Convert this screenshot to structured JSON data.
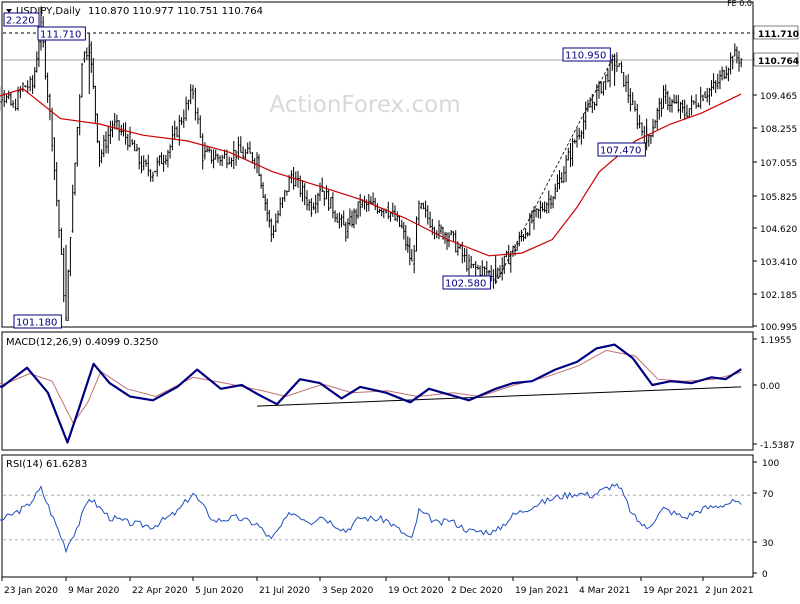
{
  "header": {
    "symbol": "USDJPY,Daily",
    "ohlc": "110.870 110.977 110.751 110.764",
    "corner_label": "FE 0.0"
  },
  "watermark": "ActionForex.com",
  "colors": {
    "price_bars": "#000000",
    "ema": "#cc0000",
    "macd_line": "#000080",
    "macd_signal": "#c07070",
    "rsi_line": "#1f4fbf",
    "trendline": "#000000",
    "label_border": "#000080",
    "current_price_line": "#a0a0a0",
    "grid_line": "#b0b0b0",
    "watermark_color": "#d8d8d8"
  },
  "chart_data": [
    {
      "type": "line",
      "panel": "price",
      "description_label": "USDJPY,Daily",
      "y_ticks": [
        "111.710",
        "110.764",
        "109.465",
        "108.255",
        "107.055",
        "105.825",
        "104.620",
        "103.410",
        "102.185",
        "100.995"
      ],
      "ylim": [
        100.995,
        111.71
      ],
      "x_tick_labels": [
        "23 Jan 2020",
        "9 Mar 2020",
        "22 Apr 2020",
        "5 Jun 2020",
        "21 Jul 2020",
        "3 Sep 2020",
        "19 Oct 2020",
        "2 Dec 2020",
        "19 Jan 2021",
        "4 Mar 2021",
        "19 Apr 2021",
        "2 Jun 2021"
      ],
      "annotations": [
        "2.220",
        "111.710",
        "101.180",
        "110.950",
        "107.470",
        "102.580"
      ],
      "current_price_label": "110.764",
      "resistance_label": "111.710",
      "series": [
        {
          "name": "",
          "dates": [
            "23 Jan 2020",
            "9 Mar 2020",
            "22 Apr 2020",
            "5 Jun 2020",
            "21 Jul 2020",
            "3 Sep 2020",
            "19 Oct 2020",
            "2 Dec 2020",
            "19 Jan 2021",
            "4 Mar 2021",
            "19 Apr 2021",
            "2 Jun 2021"
          ],
          "close_points": [
            [
              "2020-01-08",
              109.6
            ],
            [
              "2020-01-15",
              109.3
            ],
            [
              "2020-01-23",
              109.5
            ],
            [
              "2020-01-31",
              109.0
            ],
            [
              "2020-02-07",
              109.8
            ],
            [
              "2020-02-14",
              109.8
            ],
            [
              "2020-02-20",
              112.1
            ],
            [
              "2020-02-28",
              107.9
            ],
            [
              "2020-03-09",
              101.2
            ],
            [
              "2020-03-12",
              104.5
            ],
            [
              "2020-03-20",
              110.8
            ],
            [
              "2020-03-25",
              111.3
            ],
            [
              "2020-04-01",
              107.2
            ],
            [
              "2020-04-10",
              108.4
            ],
            [
              "2020-04-22",
              107.8
            ],
            [
              "2020-04-30",
              106.9
            ],
            [
              "2020-05-08",
              106.7
            ],
            [
              "2020-05-20",
              107.6
            ],
            [
              "2020-06-05",
              109.6
            ],
            [
              "2020-06-12",
              107.3
            ],
            [
              "2020-06-26",
              107.2
            ],
            [
              "2020-07-06",
              107.4
            ],
            [
              "2020-07-21",
              107.2
            ],
            [
              "2020-07-31",
              104.4
            ],
            [
              "2020-08-14",
              106.6
            ],
            [
              "2020-08-28",
              105.4
            ],
            [
              "2020-09-03",
              106.2
            ],
            [
              "2020-09-21",
              104.5
            ],
            [
              "2020-10-01",
              105.5
            ],
            [
              "2020-10-19",
              105.4
            ],
            [
              "2020-10-30",
              104.6
            ],
            [
              "2020-11-06",
              103.3
            ],
            [
              "2020-11-11",
              105.4
            ],
            [
              "2020-11-25",
              104.5
            ],
            [
              "2020-12-02",
              104.4
            ],
            [
              "2020-12-17",
              103.2
            ],
            [
              "2021-01-06",
              102.9
            ],
            [
              "2021-01-19",
              103.8
            ],
            [
              "2021-02-01",
              104.9
            ],
            [
              "2021-02-17",
              106.0
            ],
            [
              "2021-03-04",
              108.0
            ],
            [
              "2021-03-15",
              109.2
            ],
            [
              "2021-03-31",
              110.7
            ],
            [
              "2021-04-05",
              110.3
            ],
            [
              "2021-04-13",
              109.0
            ],
            [
              "2021-04-23",
              107.8
            ],
            [
              "2021-05-05",
              109.4
            ],
            [
              "2021-05-20",
              108.8
            ],
            [
              "2021-06-02",
              109.5
            ],
            [
              "2021-06-11",
              109.8
            ],
            [
              "2021-06-23",
              110.9
            ],
            [
              "2021-06-29",
              110.8
            ]
          ]
        },
        {
          "name": "",
          "points": [
            [
              "2020-01-08",
              109.2
            ],
            [
              "2020-02-07",
              109.7
            ],
            [
              "2020-03-05",
              108.6
            ],
            [
              "2020-04-01",
              108.4
            ],
            [
              "2020-05-01",
              108.0
            ],
            [
              "2020-06-01",
              107.8
            ],
            [
              "2020-07-01",
              107.4
            ],
            [
              "2020-08-01",
              106.7
            ],
            [
              "2020-09-01",
              106.2
            ],
            [
              "2020-10-01",
              105.7
            ],
            [
              "2020-11-01",
              105.0
            ],
            [
              "2020-12-01",
              104.2
            ],
            [
              "2021-01-01",
              103.6
            ],
            [
              "2021-01-25",
              103.7
            ],
            [
              "2021-02-15",
              104.2
            ],
            [
              "2021-03-04",
              105.4
            ],
            [
              "2021-03-20",
              106.7
            ],
            [
              "2021-04-15",
              107.8
            ],
            [
              "2021-05-10",
              108.4
            ],
            [
              "2021-06-01",
              108.8
            ],
            [
              "2021-06-29",
              109.5
            ]
          ]
        }
      ]
    },
    {
      "type": "line",
      "panel": "macd",
      "title": "MACD(12,26,9) 0.4099 0.3250",
      "y_ticks": [
        "1.1955",
        "0.00",
        "-1.5387"
      ],
      "ylim": [
        -1.5387,
        1.1955
      ],
      "series": [
        {
          "name": "",
          "points": [
            [
              "2020-01-08",
              0.1
            ],
            [
              "2020-01-23",
              -0.05
            ],
            [
              "2020-02-10",
              0.45
            ],
            [
              "2020-02-25",
              -0.2
            ],
            [
              "2020-03-10",
              -1.5
            ],
            [
              "2020-03-18",
              -0.6
            ],
            [
              "2020-03-28",
              0.55
            ],
            [
              "2020-04-08",
              0.05
            ],
            [
              "2020-04-22",
              -0.3
            ],
            [
              "2020-05-08",
              -0.4
            ],
            [
              "2020-05-25",
              -0.05
            ],
            [
              "2020-06-08",
              0.4
            ],
            [
              "2020-06-25",
              -0.1
            ],
            [
              "2020-07-10",
              0.0
            ],
            [
              "2020-07-22",
              -0.25
            ],
            [
              "2020-08-04",
              -0.5
            ],
            [
              "2020-08-20",
              0.15
            ],
            [
              "2020-09-03",
              0.05
            ],
            [
              "2020-09-18",
              -0.35
            ],
            [
              "2020-10-01",
              -0.05
            ],
            [
              "2020-10-19",
              -0.2
            ],
            [
              "2020-11-05",
              -0.45
            ],
            [
              "2020-11-18",
              -0.1
            ],
            [
              "2020-12-02",
              -0.25
            ],
            [
              "2020-12-17",
              -0.4
            ],
            [
              "2021-01-06",
              -0.1
            ],
            [
              "2021-01-19",
              0.05
            ],
            [
              "2021-02-01",
              0.1
            ],
            [
              "2021-02-17",
              0.4
            ],
            [
              "2021-03-04",
              0.6
            ],
            [
              "2021-03-18",
              0.95
            ],
            [
              "2021-03-31",
              1.05
            ],
            [
              "2021-04-13",
              0.7
            ],
            [
              "2021-04-27",
              0.0
            ],
            [
              "2021-05-10",
              0.1
            ],
            [
              "2021-05-25",
              0.05
            ],
            [
              "2021-06-08",
              0.2
            ],
            [
              "2021-06-18",
              0.15
            ],
            [
              "2021-06-29",
              0.41
            ]
          ]
        },
        {
          "name": "",
          "points": [
            [
              "2020-01-08",
              0.15
            ],
            [
              "2020-01-25",
              0.02
            ],
            [
              "2020-02-12",
              0.3
            ],
            [
              "2020-02-28",
              0.1
            ],
            [
              "2020-03-14",
              -1.0
            ],
            [
              "2020-03-24",
              -0.45
            ],
            [
              "2020-04-02",
              0.35
            ],
            [
              "2020-04-20",
              -0.1
            ],
            [
              "2020-05-10",
              -0.3
            ],
            [
              "2020-06-05",
              0.2
            ],
            [
              "2020-06-28",
              0.05
            ],
            [
              "2020-07-25",
              -0.15
            ],
            [
              "2020-08-10",
              -0.3
            ],
            [
              "2020-09-05",
              0.02
            ],
            [
              "2020-09-25",
              -0.2
            ],
            [
              "2020-10-20",
              -0.15
            ],
            [
              "2020-11-10",
              -0.3
            ],
            [
              "2020-12-05",
              -0.2
            ],
            [
              "2020-12-25",
              -0.3
            ],
            [
              "2021-01-20",
              0.0
            ],
            [
              "2021-02-10",
              0.2
            ],
            [
              "2021-03-05",
              0.5
            ],
            [
              "2021-03-25",
              0.9
            ],
            [
              "2021-04-15",
              0.75
            ],
            [
              "2021-05-01",
              0.15
            ],
            [
              "2021-05-20",
              0.1
            ],
            [
              "2021-06-10",
              0.15
            ],
            [
              "2021-06-29",
              0.33
            ]
          ]
        }
      ],
      "trendline_values": [
        [
          "2020-07-21",
          -0.55
        ],
        [
          "2021-06-29",
          -0.05
        ]
      ]
    },
    {
      "type": "line",
      "panel": "rsi",
      "title": "RSI(14) 61.6283",
      "y_ticks": [
        "100",
        "70",
        "30",
        "0"
      ],
      "ylim": [
        0,
        100
      ],
      "levels": [
        70,
        30
      ],
      "series": [
        {
          "name": "",
          "points": [
            [
              "2020-01-08",
              52
            ],
            [
              "2020-01-23",
              48
            ],
            [
              "2020-02-10",
              60
            ],
            [
              "2020-02-20",
              76
            ],
            [
              "2020-03-09",
              22
            ],
            [
              "2020-03-18",
              45
            ],
            [
              "2020-03-25",
              68
            ],
            [
              "2020-04-08",
              50
            ],
            [
              "2020-04-22",
              45
            ],
            [
              "2020-05-08",
              42
            ],
            [
              "2020-05-25",
              55
            ],
            [
              "2020-06-05",
              72
            ],
            [
              "2020-06-20",
              47
            ],
            [
              "2020-07-06",
              50
            ],
            [
              "2020-07-21",
              44
            ],
            [
              "2020-07-31",
              30
            ],
            [
              "2020-08-14",
              55
            ],
            [
              "2020-08-28",
              46
            ],
            [
              "2020-09-03",
              52
            ],
            [
              "2020-09-21",
              38
            ],
            [
              "2020-10-01",
              50
            ],
            [
              "2020-10-19",
              48
            ],
            [
              "2020-11-06",
              30
            ],
            [
              "2020-11-11",
              56
            ],
            [
              "2020-11-25",
              44
            ],
            [
              "2020-12-02",
              48
            ],
            [
              "2020-12-17",
              38
            ],
            [
              "2021-01-06",
              37
            ],
            [
              "2021-01-19",
              52
            ],
            [
              "2021-02-01",
              60
            ],
            [
              "2021-02-17",
              68
            ],
            [
              "2021-03-04",
              72
            ],
            [
              "2021-03-15",
              70
            ],
            [
              "2021-03-31",
              80
            ],
            [
              "2021-04-05",
              74
            ],
            [
              "2021-04-13",
              52
            ],
            [
              "2021-04-23",
              40
            ],
            [
              "2021-05-05",
              58
            ],
            [
              "2021-05-20",
              50
            ],
            [
              "2021-06-02",
              58
            ],
            [
              "2021-06-11",
              60
            ],
            [
              "2021-06-23",
              64
            ],
            [
              "2021-06-29",
              61.6
            ]
          ]
        }
      ]
    }
  ]
}
